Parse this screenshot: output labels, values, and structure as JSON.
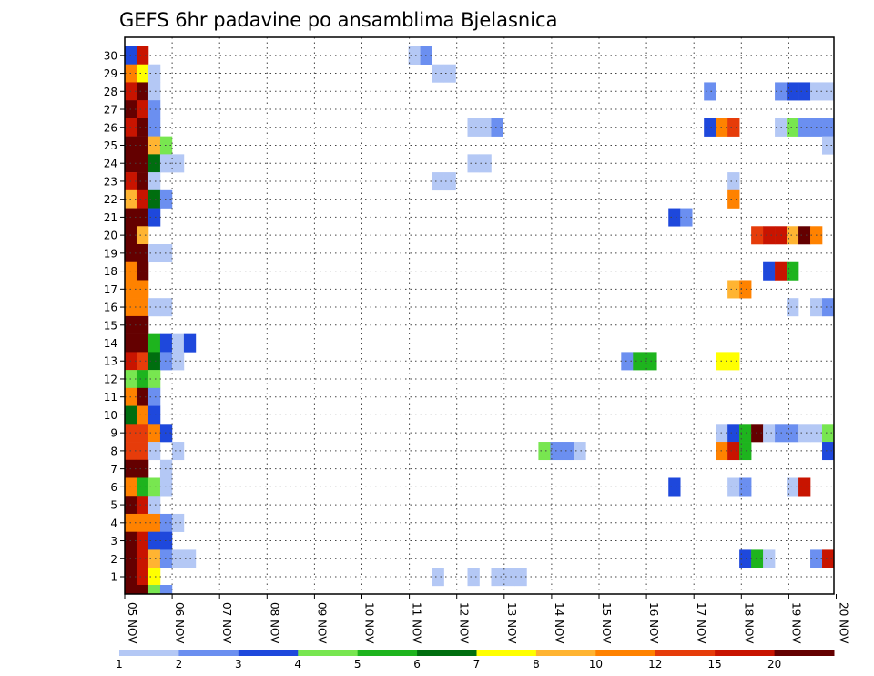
{
  "chart_data": {
    "type": "heatmap",
    "title": "GEFS 6hr padavine po ansamblima Bjelasnica",
    "xlabel": "",
    "ylabel": "",
    "x_ticks": [
      "05 NOV",
      "06 NOV",
      "07 NOV",
      "08 NOV",
      "09 NOV",
      "10 NOV",
      "11 NOV",
      "12 NOV",
      "13 NOV",
      "14 NOV",
      "15 NOV",
      "16 NOV",
      "17 NOV",
      "18 NOV",
      "19 NOV",
      "20 NOV"
    ],
    "y_ticks": [
      "1",
      "2",
      "3",
      "4",
      "5",
      "6",
      "7",
      "8",
      "9",
      "10",
      "11",
      "12",
      "13",
      "14",
      "15",
      "16",
      "17",
      "18",
      "19",
      "20",
      "21",
      "22",
      "23",
      "24",
      "25",
      "26",
      "27",
      "28",
      "29",
      "30"
    ],
    "step_index_note": "",
    "grid": true,
    "colorbar": {
      "levels": [
        1,
        2,
        3,
        4,
        5,
        6,
        7,
        8,
        10,
        12,
        15,
        20
      ],
      "labels": [
        "1",
        "2",
        "3",
        "4",
        "5",
        "6",
        "7",
        "8",
        "10",
        "12",
        "15",
        "20"
      ],
      "colors": [
        "#b4c8f5",
        "#6b8ff0",
        "#1e48dc",
        "#78e650",
        "#1eb41e",
        "#006e0f",
        "#ffff00",
        "#ffb432",
        "#ff8200",
        "#e63c0a",
        "#c81400",
        "#640000"
      ]
    },
    "cells": [
      [
        0,
        30,
        2
      ],
      [
        1,
        30,
        10
      ],
      [
        0,
        29,
        8
      ],
      [
        1,
        29,
        6
      ],
      [
        2,
        29,
        0
      ],
      [
        0,
        28,
        10
      ],
      [
        1,
        28,
        11
      ],
      [
        2,
        28,
        0
      ],
      [
        0,
        27,
        11
      ],
      [
        1,
        27,
        10
      ],
      [
        2,
        27,
        1
      ],
      [
        0,
        26,
        10
      ],
      [
        1,
        26,
        11
      ],
      [
        2,
        26,
        1
      ],
      [
        0,
        25,
        11
      ],
      [
        1,
        25,
        11
      ],
      [
        2,
        25,
        7
      ],
      [
        3,
        25,
        3
      ],
      [
        0,
        24,
        11
      ],
      [
        1,
        24,
        11
      ],
      [
        2,
        24,
        5
      ],
      [
        3,
        24,
        0
      ],
      [
        4,
        24,
        0
      ],
      [
        0,
        23,
        10
      ],
      [
        1,
        23,
        11
      ],
      [
        2,
        23,
        0
      ],
      [
        0,
        22,
        7
      ],
      [
        1,
        22,
        10
      ],
      [
        2,
        22,
        5
      ],
      [
        3,
        22,
        1
      ],
      [
        0,
        21,
        11
      ],
      [
        1,
        21,
        11
      ],
      [
        2,
        21,
        2
      ],
      [
        0,
        20,
        11
      ],
      [
        1,
        20,
        7
      ],
      [
        0,
        19,
        11
      ],
      [
        1,
        19,
        11
      ],
      [
        2,
        19,
        0
      ],
      [
        3,
        19,
        0
      ],
      [
        0,
        18,
        8
      ],
      [
        1,
        18,
        11
      ],
      [
        0,
        17,
        8
      ],
      [
        1,
        17,
        8
      ],
      [
        0,
        16,
        8
      ],
      [
        1,
        16,
        8
      ],
      [
        2,
        16,
        0
      ],
      [
        3,
        16,
        0
      ],
      [
        0,
        15,
        11
      ],
      [
        1,
        15,
        11
      ],
      [
        0,
        14,
        11
      ],
      [
        1,
        14,
        11
      ],
      [
        2,
        14,
        4
      ],
      [
        3,
        14,
        2
      ],
      [
        4,
        14,
        0
      ],
      [
        5,
        14,
        2
      ],
      [
        0,
        13,
        10
      ],
      [
        1,
        13,
        9
      ],
      [
        2,
        13,
        5
      ],
      [
        3,
        13,
        1
      ],
      [
        4,
        13,
        0
      ],
      [
        0,
        12,
        3
      ],
      [
        1,
        12,
        4
      ],
      [
        2,
        12,
        3
      ],
      [
        0,
        11,
        8
      ],
      [
        1,
        11,
        11
      ],
      [
        2,
        11,
        1
      ],
      [
        0,
        10,
        5
      ],
      [
        1,
        10,
        8
      ],
      [
        2,
        10,
        2
      ],
      [
        0,
        9,
        9
      ],
      [
        1,
        9,
        9
      ],
      [
        2,
        9,
        8
      ],
      [
        3,
        9,
        2
      ],
      [
        0,
        8,
        9
      ],
      [
        1,
        8,
        9
      ],
      [
        2,
        8,
        0
      ],
      [
        4,
        8,
        0
      ],
      [
        0,
        7,
        11
      ],
      [
        1,
        7,
        11
      ],
      [
        3,
        7,
        0
      ],
      [
        0,
        6,
        8
      ],
      [
        1,
        6,
        4
      ],
      [
        2,
        6,
        3
      ],
      [
        3,
        6,
        0
      ],
      [
        0,
        5,
        11
      ],
      [
        1,
        5,
        10
      ],
      [
        2,
        5,
        0
      ],
      [
        0,
        4,
        8
      ],
      [
        1,
        4,
        8
      ],
      [
        2,
        4,
        8
      ],
      [
        3,
        4,
        1
      ],
      [
        4,
        4,
        0
      ],
      [
        0,
        3,
        11
      ],
      [
        1,
        3,
        10
      ],
      [
        2,
        3,
        2
      ],
      [
        3,
        3,
        2
      ],
      [
        0,
        2,
        11
      ],
      [
        1,
        2,
        10
      ],
      [
        2,
        2,
        7
      ],
      [
        3,
        2,
        1
      ],
      [
        4,
        2,
        0
      ],
      [
        5,
        2,
        0
      ],
      [
        0,
        1,
        11
      ],
      [
        1,
        1,
        10
      ],
      [
        2,
        1,
        6
      ],
      [
        0,
        0,
        11
      ],
      [
        1,
        0,
        11
      ],
      [
        2,
        0,
        3
      ],
      [
        3,
        0,
        1
      ],
      [
        24,
        30,
        0
      ],
      [
        25,
        30,
        1
      ],
      [
        26,
        29,
        0
      ],
      [
        27,
        29,
        0
      ],
      [
        26,
        23,
        0
      ],
      [
        27,
        23,
        0
      ],
      [
        26,
        1,
        0
      ],
      [
        29,
        26,
        0
      ],
      [
        30,
        26,
        0
      ],
      [
        31,
        26,
        1
      ],
      [
        29,
        24,
        0
      ],
      [
        30,
        24,
        0
      ],
      [
        29,
        1,
        0
      ],
      [
        31,
        1,
        0
      ],
      [
        32,
        1,
        0
      ],
      [
        33,
        1,
        0
      ],
      [
        35,
        8,
        3
      ],
      [
        36,
        8,
        1
      ],
      [
        37,
        8,
        1
      ],
      [
        38,
        8,
        0
      ],
      [
        42,
        13,
        1
      ],
      [
        43,
        13,
        4
      ],
      [
        44,
        13,
        4
      ],
      [
        46,
        21,
        2
      ],
      [
        47,
        21,
        1
      ],
      [
        46,
        6,
        2
      ],
      [
        49,
        28,
        1
      ],
      [
        49,
        26,
        2
      ],
      [
        50,
        26,
        8
      ],
      [
        51,
        26,
        9
      ],
      [
        51,
        23,
        0
      ],
      [
        51,
        22,
        8
      ],
      [
        51,
        17,
        7
      ],
      [
        52,
        17,
        8
      ],
      [
        50,
        13,
        6
      ],
      [
        51,
        13,
        6
      ],
      [
        50,
        9,
        0
      ],
      [
        51,
        9,
        2
      ],
      [
        52,
        9,
        4
      ],
      [
        53,
        9,
        11
      ],
      [
        54,
        9,
        0
      ],
      [
        55,
        9,
        1
      ],
      [
        56,
        9,
        1
      ],
      [
        57,
        9,
        0
      ],
      [
        58,
        9,
        0
      ],
      [
        59,
        9,
        3
      ],
      [
        50,
        8,
        8
      ],
      [
        51,
        8,
        10
      ],
      [
        52,
        8,
        4
      ],
      [
        51,
        6,
        0
      ],
      [
        52,
        6,
        1
      ],
      [
        52,
        2,
        2
      ],
      [
        53,
        2,
        4
      ],
      [
        54,
        2,
        0
      ],
      [
        55,
        28,
        1
      ],
      [
        56,
        28,
        2
      ],
      [
        57,
        28,
        2
      ],
      [
        58,
        28,
        0
      ],
      [
        59,
        28,
        0
      ],
      [
        55,
        26,
        0
      ],
      [
        56,
        26,
        3
      ],
      [
        57,
        26,
        1
      ],
      [
        58,
        26,
        1
      ],
      [
        59,
        26,
        1
      ],
      [
        59,
        25,
        0
      ],
      [
        53,
        20,
        9
      ],
      [
        54,
        20,
        10
      ],
      [
        55,
        20,
        10
      ],
      [
        56,
        20,
        7
      ],
      [
        57,
        20,
        11
      ],
      [
        58,
        20,
        8
      ],
      [
        54,
        18,
        2
      ],
      [
        55,
        18,
        10
      ],
      [
        56,
        18,
        4
      ],
      [
        56,
        16,
        0
      ],
      [
        58,
        16,
        0
      ],
      [
        59,
        16,
        1
      ],
      [
        56,
        6,
        0
      ],
      [
        57,
        6,
        10
      ],
      [
        58,
        2,
        1
      ],
      [
        59,
        2,
        10
      ],
      [
        59,
        8,
        2
      ]
    ]
  }
}
